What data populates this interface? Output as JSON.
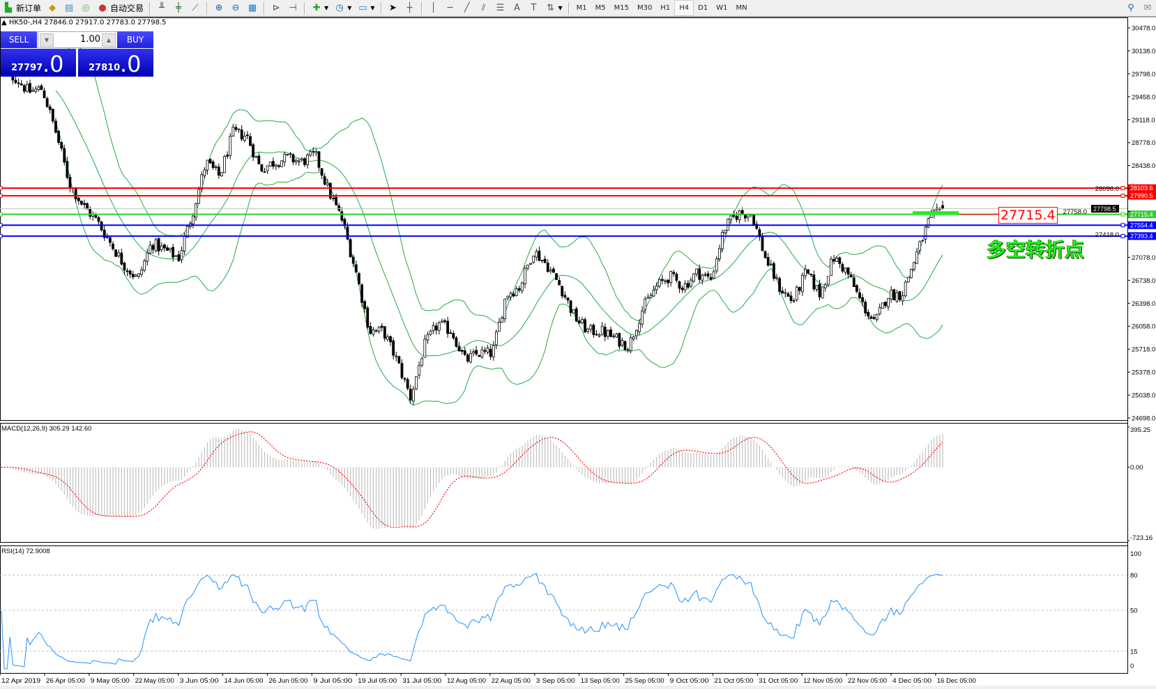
{
  "toolbar": {
    "new_order": "新订单",
    "auto_trading": "自动交易",
    "timeframes": [
      "M1",
      "M5",
      "M15",
      "M30",
      "H1",
      "H4",
      "D1",
      "W1",
      "MN"
    ],
    "active_timeframe": "H4"
  },
  "chart": {
    "symbol_info": "HK50-,H4  27846.0 27917.0 27783.0 27798.5"
  },
  "trade_panel": {
    "sell": "SELL",
    "buy": "BUY",
    "lot": "1.00",
    "sell_price_main": "27797",
    "sell_price_frac": ".0",
    "buy_price_main": "27810",
    "buy_price_frac": ".0"
  },
  "annotation": {
    "label": "27715.4",
    "text": "多空转折点"
  },
  "colors": {
    "bands": "#22aa44",
    "macd_histogram": "#c0c0c0",
    "macd_signal": "#ff0000",
    "rsi": "#1e90ff",
    "resistance": "#ff0000",
    "pivot": "#33cc33",
    "support": "#0000ff"
  },
  "chart_data": [
    {
      "type": "candlestick",
      "title": "HK50-,H4",
      "last_bar": {
        "open": 27846.0,
        "high": 27917.0,
        "low": 27783.0,
        "close": 27798.5
      },
      "approx_close_path": [
        29800,
        29748,
        29530,
        29580,
        28930,
        28166,
        27840,
        27620,
        27290,
        26966,
        26750,
        27290,
        27180,
        27075,
        27730,
        28490,
        28275,
        28930,
        28875,
        28385,
        28490,
        28550,
        28490,
        28600,
        28057,
        27620,
        26857,
        25985,
        25985,
        25548,
        25000,
        25766,
        26094,
        25985,
        25548,
        25657,
        25657,
        26530,
        26640,
        27180,
        26966,
        26640,
        26203,
        25985,
        25985,
        25875,
        25766,
        26312,
        26640,
        26803,
        26640,
        26857,
        26750,
        27511,
        27730,
        27730,
        27075,
        26640,
        26421,
        26857,
        26530,
        27075,
        26857,
        26421,
        26094,
        26530,
        26530,
        27075,
        27620,
        27798.5
      ],
      "overlay": "Bollinger Bands (upper, middle, lower)",
      "ylim": [
        24698.0,
        30478.0
      ],
      "price_ticks": [
        "30478.0",
        "30138.0",
        "29798.0",
        "29458.0",
        "29118.0",
        "28778.0",
        "28438.0",
        "28098.0",
        "27758.0",
        "27418.0",
        "27078.0",
        "26738.0",
        "26398.0",
        "26058.0",
        "25718.0",
        "25378.0",
        "25038.0",
        "24698.0"
      ],
      "date_labels": [
        "12 Apr 2019",
        "26 Apr 05:00",
        "9 May 05:00",
        "22 May 05:00",
        "3 Jun 05:00",
        "14 Jun 05:00",
        "26 Jun 05:00",
        "9 Jul 05:00",
        "19 Jul 05:00",
        "31 Jul 05:00",
        "12 Aug 05:00",
        "22 Aug 05:00",
        "3 Sep 05:00",
        "13 Sep 05:00",
        "25 Sep 05:00",
        "9 Oct 05:00",
        "21 Oct 05:00",
        "31 Oct 05:00",
        "12 Nov 05:00",
        "22 Nov 05:00",
        "4 Dec 05:00",
        "16 Dec 05:00"
      ],
      "hlines": [
        {
          "value": 28103.6,
          "label": "28103.6",
          "color": "#ff0000"
        },
        {
          "value": 27990.5,
          "label": "27990.5",
          "color": "#ff0000"
        },
        {
          "value": 27715.4,
          "label": "27715.4",
          "color": "#33cc33"
        },
        {
          "value": 27554.4,
          "label": "27554.4",
          "color": "#0000ff"
        },
        {
          "value": 27393.4,
          "label": "27393.4",
          "color": "#0000ff"
        }
      ],
      "current_price": {
        "value": 27798.5,
        "label": "27798.5"
      }
    },
    {
      "type": "bar+line",
      "title": "MACD(12,26,9) 305.29 142.60",
      "main": 305.29,
      "signal": 142.6,
      "ylim": [
        -723.16,
        395.25
      ],
      "ticks": [
        "395.25",
        "0.00",
        "-723.16"
      ]
    },
    {
      "type": "line",
      "title": "RSI(14) 72.9008",
      "last": 72.9008,
      "ylim": [
        0,
        100
      ],
      "ticks": [
        "100",
        "80",
        "50",
        "15",
        "0"
      ],
      "levels": [
        80,
        50,
        15
      ]
    }
  ]
}
